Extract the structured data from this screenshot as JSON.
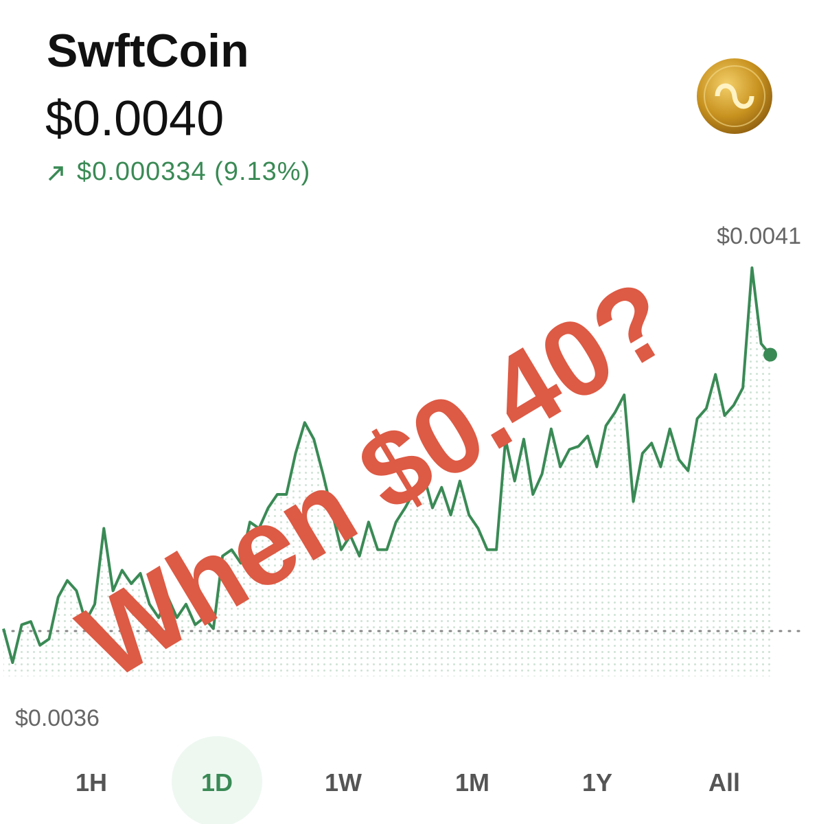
{
  "header": {
    "title": "SwftCoin",
    "price": "$0.0040",
    "change": "$0.000334 (9.13%)"
  },
  "chart_data": {
    "type": "line",
    "color": "#3a8a55",
    "values": [
      0.003643,
      0.0036,
      0.003648,
      0.003652,
      0.003622,
      0.00363,
      0.003683,
      0.003704,
      0.003691,
      0.003652,
      0.003674,
      0.00377,
      0.003691,
      0.003717,
      0.0037,
      0.003713,
      0.003674,
      0.003657,
      0.003683,
      0.003657,
      0.003674,
      0.003648,
      0.003657,
      0.003643,
      0.003735,
      0.003743,
      0.003726,
      0.003778,
      0.00377,
      0.003796,
      0.003813,
      0.003813,
      0.003865,
      0.003904,
      0.003883,
      0.003839,
      0.003791,
      0.003743,
      0.003761,
      0.003735,
      0.003778,
      0.003743,
      0.003743,
      0.003778,
      0.003796,
      0.003817,
      0.003839,
      0.003796,
      0.003822,
      0.003787,
      0.00383,
      0.003787,
      0.00377,
      0.003743,
      0.003743,
      0.003883,
      0.00383,
      0.003883,
      0.003813,
      0.003839,
      0.003896,
      0.003848,
      0.00387,
      0.003874,
      0.003887,
      0.003848,
      0.0039,
      0.003917,
      0.003939,
      0.003804,
      0.003865,
      0.003878,
      0.003848,
      0.003896,
      0.003857,
      0.003843,
      0.003909,
      0.003922,
      0.003965,
      0.003913,
      0.003926,
      0.003948,
      0.0041,
      0.004004,
      0.00399
    ],
    "ylim": [
      0.0035,
      0.0042
    ],
    "baseline": 0.00364,
    "high": {
      "value": 0.0041,
      "label": "$0.0041"
    },
    "low": {
      "value": 0.0036,
      "label": "$0.0036"
    },
    "annotation": "When $0.40?",
    "ranges": [
      "1H",
      "1D",
      "1W",
      "1M",
      "1Y",
      "All"
    ],
    "selected_range": "1D"
  }
}
